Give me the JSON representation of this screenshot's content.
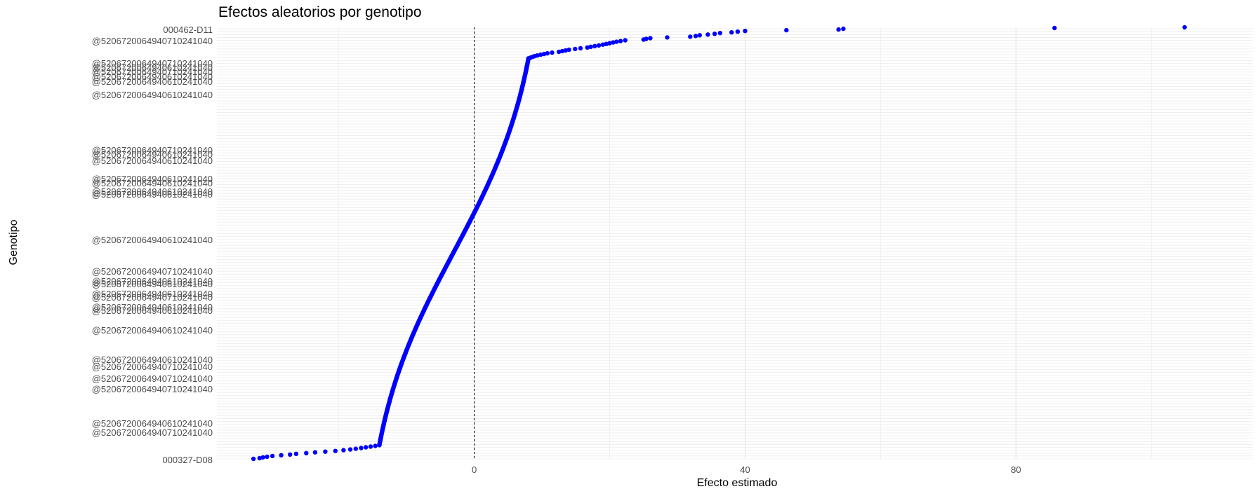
{
  "chart_data": {
    "type": "scatter",
    "title": "Efectos aleatorios por genotipo",
    "xlabel": "Efecto estimado",
    "ylabel": "Genotipo",
    "xlim": [
      -38,
      115
    ],
    "xticks": [
      0,
      40,
      80
    ],
    "grid": true,
    "legend": "none",
    "reference_line": {
      "x": 0,
      "style": "dashed"
    },
    "point_color": "#0000ff",
    "n_genotypes": 599,
    "y_tick_labels": {
      "visible_top": "000462-D11",
      "visible_bottom": "000327-D08",
      "visible_prefix_labels": [
        "@5206720064940710241040",
        "@5206720064940710241040",
        "@5206720064940610241040",
        "@5206720064940710241040",
        "@5206720064940610241040",
        "@5206720064940610241040",
        "@5206720064940610241040",
        "@5206720064940710241040",
        "@5206720064940610241040",
        "@5206720064940610241040",
        "@5206720064940610241040",
        "@5206720064940610241040",
        "@5206720064940610241040",
        "@5206720064940610241040",
        "@5206720064940610241040",
        "@5206720064940710241040",
        "@5206720064940610241040",
        "@5206720064940610241040",
        "@5206720064940610241040",
        "@5206720064940710241040",
        "@5206720064940610241040",
        "@5206720064940610241040",
        "@5206720064940610241040",
        "@5206720064940610241040",
        "@5206720064940710241040",
        "@5206720064940710241040",
        "@5206720064940710241040",
        "@5206720064940610241040",
        "@5206720064940710241040"
      ]
    },
    "series": [
      {
        "sorted_effects_upper_tail": [
          104.9,
          85.7,
          54.5,
          53.8,
          46.1,
          40.0,
          38.9,
          38.0,
          36.3,
          35.5,
          34.5,
          33.3,
          32.7,
          31.9,
          28.5,
          26.0,
          25.4,
          25.0,
          22.3,
          21.6,
          21.0,
          20.5,
          20.0,
          19.5,
          19.0,
          18.4,
          17.8,
          17.2,
          16.7,
          15.7,
          14.9,
          14.0,
          13.5,
          13.0,
          12.5,
          11.5,
          10.8,
          10.3,
          9.8,
          9.3,
          8.9,
          8.6,
          8.3,
          8.0
        ],
        "sorted_effects_lower_tail": [
          -14.0,
          -14.6,
          -15.3,
          -16.0,
          -16.7,
          -17.5,
          -18.3,
          -19.3,
          -20.5,
          -22.0,
          -23.5,
          -24.8,
          -26.3,
          -27.2,
          -28.5,
          -29.8,
          -30.6,
          -31.2,
          -31.7,
          -32.6
        ]
      }
    ]
  }
}
